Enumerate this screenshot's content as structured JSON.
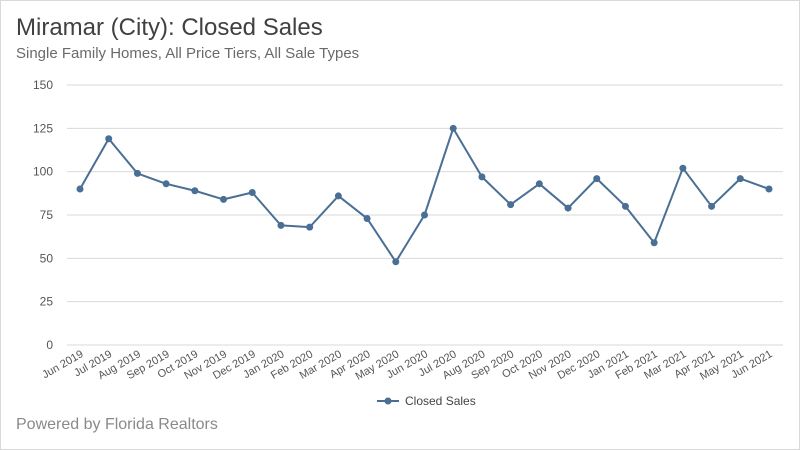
{
  "header": {
    "title": "Miramar (City): Closed Sales",
    "subtitle": "Single Family Homes, All Price Tiers, All Sale Types"
  },
  "footer": {
    "text": "Powered by Florida Realtors"
  },
  "chart_data": {
    "type": "line",
    "categories": [
      "Jun 2019",
      "Jul 2019",
      "Aug 2019",
      "Sep 2019",
      "Oct 2019",
      "Nov 2019",
      "Dec 2019",
      "Jan 2020",
      "Feb 2020",
      "Mar 2020",
      "Apr 2020",
      "May 2020",
      "Jun 2020",
      "Jul 2020",
      "Aug 2020",
      "Sep 2020",
      "Oct 2020",
      "Nov 2020",
      "Dec 2020",
      "Jan 2021",
      "Feb 2021",
      "Mar 2021",
      "Apr 2021",
      "May 2021",
      "Jun 2021"
    ],
    "series": [
      {
        "name": "Closed Sales",
        "values": [
          90,
          119,
          99,
          93,
          89,
          84,
          88,
          69,
          68,
          86,
          73,
          48,
          75,
          125,
          97,
          81,
          93,
          79,
          96,
          80,
          59,
          102,
          80,
          96,
          90
        ]
      }
    ],
    "ylim": [
      0,
      150
    ],
    "yticks": [
      0,
      25,
      50,
      75,
      100,
      125,
      150
    ],
    "grid": true,
    "legend": "bottom-center",
    "colors": {
      "series": "#4a6f94",
      "grid": "#d9d9d9"
    }
  }
}
